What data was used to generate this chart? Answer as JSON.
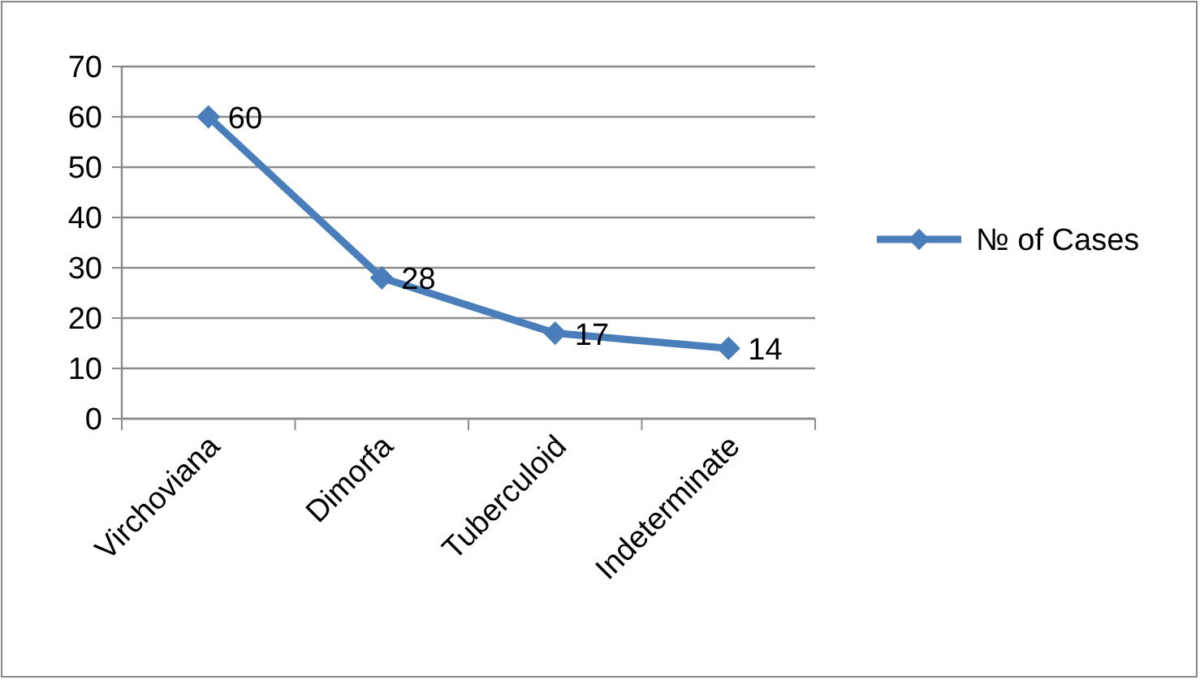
{
  "chart_data": {
    "type": "line",
    "categories": [
      "Virchoviana",
      "Dimorfa",
      "Tuberculoid",
      "Indeterminate"
    ],
    "series": [
      {
        "name": "№ of Cases",
        "color": "#4a7ebb",
        "values": [
          60,
          28,
          17,
          14
        ]
      }
    ],
    "ylim": [
      0,
      70
    ],
    "yticks": [
      0,
      10,
      20,
      30,
      40,
      50,
      60,
      70
    ],
    "grid": "y",
    "legend": "right",
    "marker": "diamond",
    "data_labels": true
  }
}
